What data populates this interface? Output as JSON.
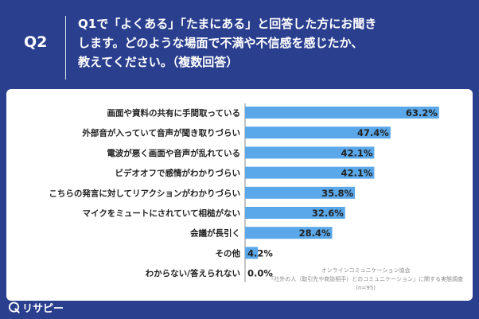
{
  "header": {
    "qnum": "Q2",
    "lines": [
      "Q1で「よくある」「たまにある」と回答した方にお聞き",
      "します。どのような場面で不満や不信感を感じたか、",
      "教えてください。（複数回答）"
    ]
  },
  "colors": {
    "background": "#2b3f8f",
    "bar": "#5aa8ea",
    "panel": "#ffffff"
  },
  "chart_data": {
    "type": "bar",
    "orientation": "horizontal",
    "categories": [
      "画面や資料の共有に手間取っている",
      "外部音が入っていて音声が聞き取りづらい",
      "電波が悪く画面や音声が乱れている",
      "ビデオオフで感情がわかりづらい",
      "こちらの発言に対してリアクションがわかりづらい",
      "マイクをミュートにされていて相槌がない",
      "会議が長引く",
      "その他",
      "わからない/答えられない"
    ],
    "values": [
      63.2,
      47.4,
      42.1,
      42.1,
      35.8,
      32.6,
      28.4,
      4.2,
      0.0
    ],
    "value_labels": [
      "63.2%",
      "47.4%",
      "42.1%",
      "42.1%",
      "35.8%",
      "32.6%",
      "28.4%",
      "4.2%",
      "0.0%"
    ],
    "xlim": [
      0,
      70
    ],
    "grid": false
  },
  "source": {
    "lines": [
      "オンラインコミュニケーション協会",
      "「社外の人（取引先や商談相手）とのコミュニケーション」に関する実態調査",
      "(n=95)"
    ]
  },
  "logo": {
    "text": "リサピー",
    "icon": "speech-bubble-q-icon"
  }
}
